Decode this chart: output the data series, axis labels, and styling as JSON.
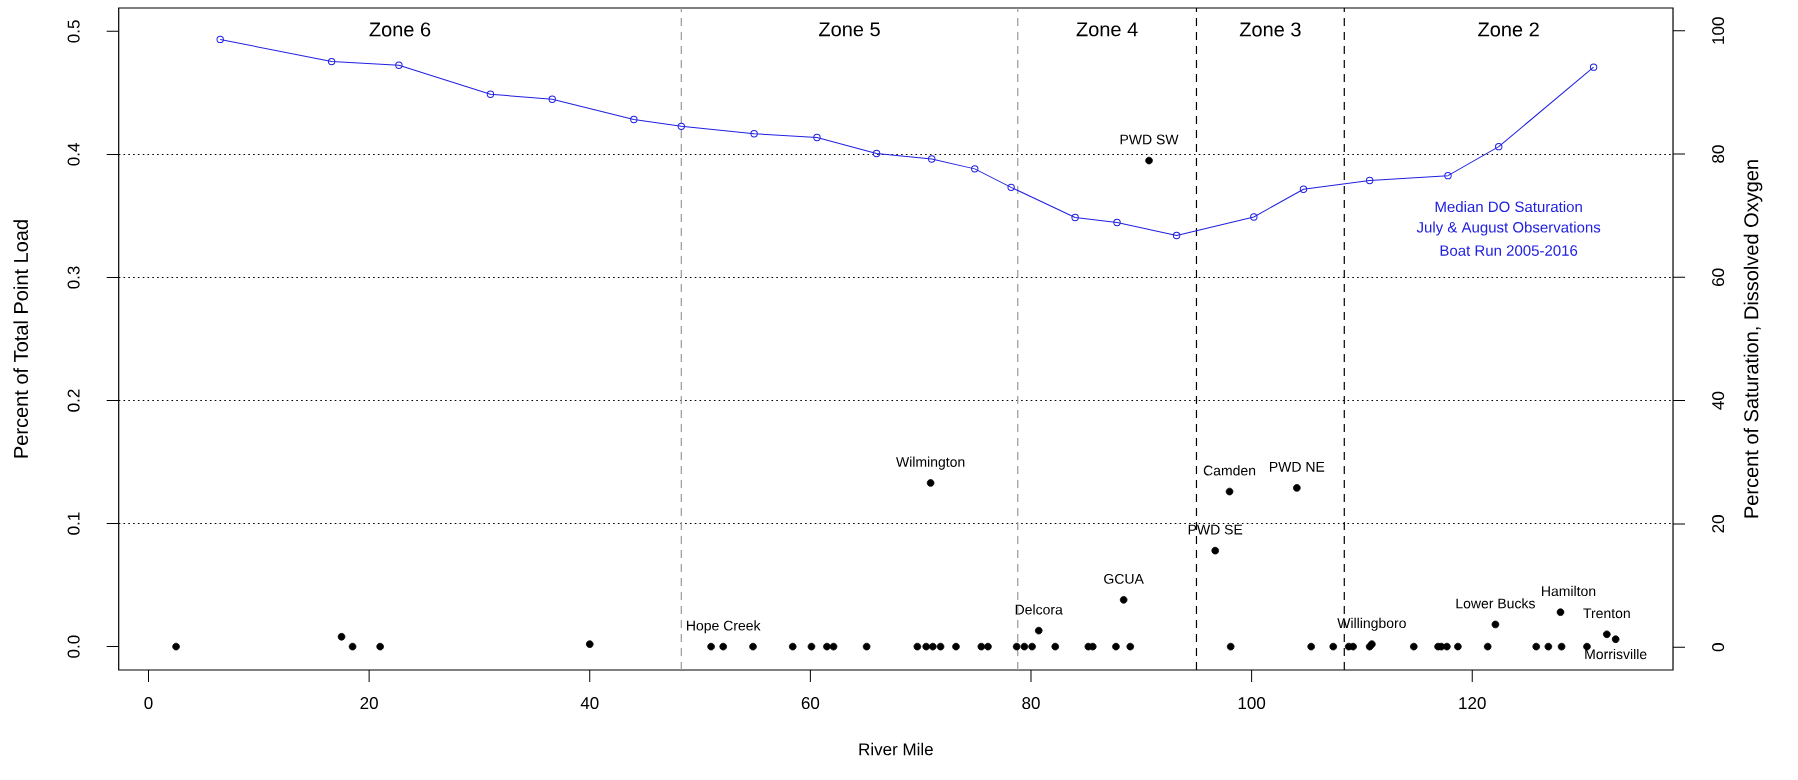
{
  "chart_data": {
    "type": "scatter",
    "xlabel": "River Mile",
    "ylabel": "Percent of Total Point Load",
    "y2label": "Percent of Saturation, Dissolved Oxygen",
    "xlim": [
      -2.7,
      138.2
    ],
    "xticks": [
      0,
      20,
      40,
      60,
      80,
      100,
      120
    ],
    "ylim": [
      -0.019,
      0.519
    ],
    "yticks": [
      {
        "value": 0,
        "label": "0.0"
      },
      0.1,
      0.2,
      0.3,
      0.4,
      0.5
    ],
    "y2lim": [
      -3.7,
      103.7
    ],
    "y2ticks": [
      0,
      20,
      40,
      60,
      80,
      100
    ],
    "marker": "circle",
    "series": [
      {
        "color": "#000000",
        "x": [
          2.5,
          17.5,
          18.5,
          21.0,
          40.0,
          51.0,
          52.1,
          54.8,
          58.4,
          60.1,
          61.5,
          62.1,
          65.1,
          69.7,
          70.5,
          70.9,
          71.1,
          71.8,
          73.2,
          75.5,
          76.1,
          78.7,
          79.4,
          80.1,
          80.7,
          82.2,
          85.2,
          85.6,
          87.7,
          88.4,
          89.0,
          90.7,
          96.7,
          98.0,
          98.1,
          104.1,
          105.4,
          107.4,
          108.8,
          109.2,
          110.7,
          110.9,
          114.7,
          116.9,
          117.2,
          117.7,
          118.7,
          121.4,
          122.1,
          125.8,
          126.9,
          128.0,
          128.1,
          130.4,
          132.2,
          133.0
        ],
        "values": [
          0,
          0.008,
          0,
          0,
          0.002,
          0,
          0,
          0,
          0,
          0,
          0,
          0,
          0,
          0,
          0,
          0.133,
          0,
          0,
          0,
          0,
          0,
          0,
          0,
          0,
          0.013,
          0,
          0,
          0,
          0,
          0.038,
          0,
          0.395,
          0.078,
          0.126,
          0,
          0.129,
          0,
          0,
          0,
          0,
          0,
          0.002,
          0,
          0,
          0,
          0,
          0,
          0,
          0.018,
          0,
          0,
          0.028,
          0,
          0,
          0.01,
          0.006
        ],
        "value_labels": [
          null,
          null,
          null,
          null,
          null,
          null,
          "Hope Creek",
          null,
          null,
          null,
          null,
          null,
          null,
          null,
          null,
          "Wilmington",
          null,
          null,
          null,
          null,
          null,
          null,
          null,
          null,
          "Delcora",
          null,
          null,
          null,
          null,
          "GCUA",
          null,
          "PWD SW",
          "PWD SE",
          "Camden",
          null,
          "PWD NE",
          null,
          null,
          null,
          null,
          null,
          "Willingboro",
          null,
          null,
          null,
          null,
          null,
          null,
          "Lower Bucks",
          null,
          null,
          "Hamilton",
          null,
          null,
          "Trenton",
          "Morrisville"
        ]
      },
      {
        "type": "line",
        "axis": "y2",
        "color": "#2020e0",
        "x": [
          6.5,
          16.6,
          22.7,
          31.0,
          36.6,
          44.0,
          48.3,
          54.9,
          60.6,
          66.0,
          71.0,
          74.9,
          78.2,
          84.0,
          87.8,
          93.2,
          100.2,
          104.7,
          110.7,
          117.8,
          122.4,
          131.0
        ],
        "values": [
          98.6,
          95.0,
          94.4,
          89.7,
          88.9,
          85.6,
          84.5,
          83.3,
          82.7,
          80.1,
          79.2,
          77.6,
          74.6,
          69.7,
          68.9,
          66.8,
          69.8,
          74.3,
          75.7,
          76.5,
          81.2,
          94.1
        ]
      }
    ],
    "ref_lines": [
      {
        "axis": "y",
        "value": 0.1,
        "color": "#000000",
        "line_style": "dotted"
      },
      {
        "axis": "y",
        "value": 0.2,
        "color": "#000000",
        "line_style": "dotted"
      },
      {
        "axis": "y",
        "value": 0.3,
        "color": "#000000",
        "line_style": "dotted"
      },
      {
        "axis": "y",
        "value": 0.4,
        "color": "#000000",
        "line_style": "dotted"
      },
      {
        "axis": "x",
        "value": 48.3,
        "color": "#999999",
        "line_style": "dashed"
      },
      {
        "axis": "x",
        "value": 78.8,
        "color": "#999999",
        "line_style": "dashed"
      },
      {
        "axis": "x",
        "value": 95.0,
        "color": "#000000",
        "line_style": "dashed"
      },
      {
        "axis": "x",
        "value": 108.4,
        "color": "#000000",
        "line_style": "dashed"
      }
    ],
    "annotations": [
      "Zone 6",
      "Zone 5",
      "Zone 4",
      "Zone 3",
      "Zone 2",
      "Median DO Saturation",
      "July & August Observations",
      "Boat Run 2005-2016"
    ]
  }
}
